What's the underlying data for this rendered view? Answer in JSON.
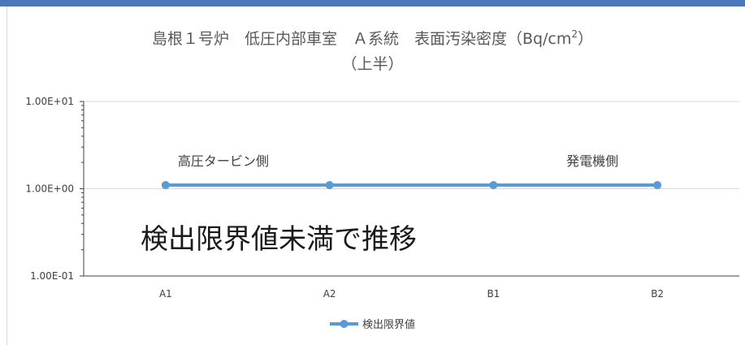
{
  "chart_data": {
    "type": "line",
    "title": "島根１号炉　低圧内部車室　Ａ系統　表面汚染密度（Bq/cm²）",
    "title_parts": {
      "main": "島根１号炉　低圧内部車室　Ａ系統　表面汚染密度（Bq/cm",
      "superscript": "2",
      "close": "）"
    },
    "subtitle": "（上半）",
    "xlabel": "",
    "ylabel": "",
    "y_scale": "log",
    "ylim": [
      0.1,
      10
    ],
    "y_ticks": [
      {
        "value": 10,
        "label": "1.00E+01"
      },
      {
        "value": 1,
        "label": "1.00E+00"
      },
      {
        "value": 0.1,
        "label": "1.00E-01"
      }
    ],
    "categories": [
      "A1",
      "A2",
      "B1",
      "B2"
    ],
    "series": [
      {
        "name": "検出限界値",
        "values": [
          1.1,
          1.1,
          1.1,
          1.1
        ],
        "color": "#5b9bd5"
      }
    ],
    "grid": "horizontal",
    "legend": "bottom",
    "annotations": [
      {
        "text": "高圧タービン側",
        "anchor": "left"
      },
      {
        "text": "発電機側",
        "anchor": "right"
      },
      {
        "text": "検出限界値未満で推移",
        "anchor": "center"
      }
    ]
  },
  "colors": {
    "accent_bar": "#4a78bd",
    "axis": "#404040",
    "gridline": "#d9d9d9",
    "text": "#404040"
  }
}
